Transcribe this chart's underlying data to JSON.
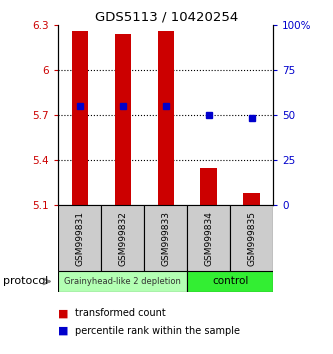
{
  "title": "GDS5113 / 10420254",
  "samples": [
    "GSM999831",
    "GSM999832",
    "GSM999833",
    "GSM999834",
    "GSM999835"
  ],
  "bar_bottoms": [
    5.1,
    5.1,
    5.1,
    5.1,
    5.1
  ],
  "bar_tops": [
    6.26,
    6.24,
    6.26,
    5.35,
    5.18
  ],
  "percentile_values": [
    5.76,
    5.76,
    5.76,
    5.7,
    5.68
  ],
  "ylim_left": [
    5.1,
    6.3
  ],
  "ylim_right": [
    0,
    100
  ],
  "yticks_left": [
    5.1,
    5.4,
    5.7,
    6.0,
    6.3
  ],
  "yticks_right": [
    0,
    25,
    50,
    75,
    100
  ],
  "ytick_labels_left": [
    "5.1",
    "5.4",
    "5.7",
    "6",
    "6.3"
  ],
  "ytick_labels_right": [
    "0",
    "25",
    "50",
    "75",
    "100%"
  ],
  "bar_color": "#cc0000",
  "percentile_color": "#0000cc",
  "group1_label": "Grainyhead-like 2 depletion",
  "group2_label": "control",
  "group1_color": "#b3ffb3",
  "group2_color": "#33ee33",
  "protocol_label": "protocol",
  "legend_bar_label": "transformed count",
  "legend_pct_label": "percentile rank within the sample",
  "sample_box_color": "#cccccc",
  "grid_yticks": [
    5.4,
    5.7,
    6.0
  ]
}
